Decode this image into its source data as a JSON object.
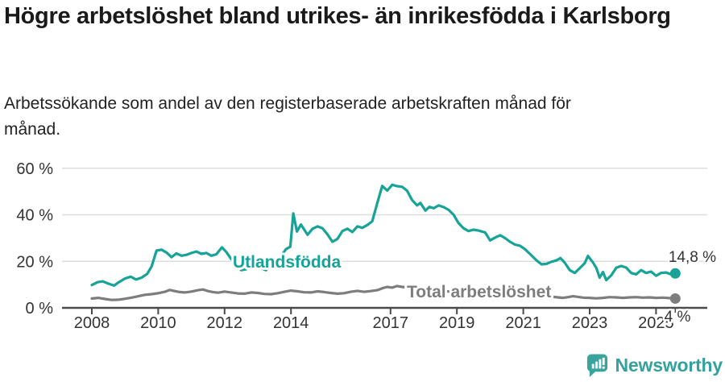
{
  "chart_data": {
    "type": "line",
    "title": "Högre arbetslöshet bland utrikes- än inrikesfödda i Karlsborg",
    "subtitle": "Arbetssökande som andel av den registerbaserade arbetskraften månad för månad.",
    "unit": "%",
    "legend_position": "inline-labels-on-lines",
    "x_axis": {
      "ticks": [
        "2008",
        "2010",
        "2012",
        "2014",
        "2017",
        "2019",
        "2021",
        "2023",
        "2025"
      ],
      "tick_years": [
        2008,
        2010,
        2012,
        2014,
        2017,
        2019,
        2021,
        2023,
        2025
      ],
      "range": [
        2007.1,
        2025.75
      ]
    },
    "y_axis": {
      "tick_labels": [
        "0 %",
        "20 %",
        "40 %",
        "60 %"
      ],
      "tick_values": [
        0,
        20,
        40,
        60
      ],
      "range": [
        0,
        62
      ],
      "gridlines": true
    },
    "colors": {
      "axis": "#4a4a4a",
      "grid": "#dddddd",
      "tick_text": "#333333",
      "end_label_text": "#333333",
      "halo": "#ffffff"
    },
    "series": [
      {
        "name": "Utlandsfödda",
        "color": "#17a398",
        "end_label": "14,8 %",
        "end_value": 14.8,
        "points": [
          [
            2008.0,
            9.8
          ],
          [
            2008.17,
            11.0
          ],
          [
            2008.33,
            11.4
          ],
          [
            2008.5,
            10.4
          ],
          [
            2008.67,
            9.6
          ],
          [
            2008.83,
            11.2
          ],
          [
            2009.0,
            12.6
          ],
          [
            2009.17,
            13.4
          ],
          [
            2009.33,
            12.2
          ],
          [
            2009.5,
            13.0
          ],
          [
            2009.67,
            14.6
          ],
          [
            2009.8,
            17.8
          ],
          [
            2009.95,
            24.6
          ],
          [
            2010.1,
            25.0
          ],
          [
            2010.25,
            23.8
          ],
          [
            2010.4,
            21.8
          ],
          [
            2010.55,
            23.4
          ],
          [
            2010.7,
            22.4
          ],
          [
            2010.85,
            22.8
          ],
          [
            2011.0,
            23.6
          ],
          [
            2011.15,
            24.2
          ],
          [
            2011.3,
            23.2
          ],
          [
            2011.45,
            23.6
          ],
          [
            2011.6,
            22.4
          ],
          [
            2011.75,
            23.0
          ],
          [
            2011.92,
            26.0
          ],
          [
            2012.05,
            24.0
          ],
          [
            2012.2,
            21.0
          ],
          [
            2012.35,
            19.3
          ],
          [
            2012.5,
            16.2
          ],
          [
            2012.65,
            16.6
          ],
          [
            2012.8,
            18.8
          ],
          [
            2012.95,
            18.4
          ],
          [
            2013.1,
            17.0
          ],
          [
            2013.25,
            16.2
          ],
          [
            2013.4,
            18.6
          ],
          [
            2013.55,
            20.0
          ],
          [
            2013.7,
            22.2
          ],
          [
            2013.85,
            25.2
          ],
          [
            2013.98,
            26.3
          ],
          [
            2014.07,
            40.6
          ],
          [
            2014.18,
            32.8
          ],
          [
            2014.3,
            35.8
          ],
          [
            2014.4,
            33.6
          ],
          [
            2014.5,
            31.4
          ],
          [
            2014.65,
            34.0
          ],
          [
            2014.8,
            35.0
          ],
          [
            2014.95,
            34.2
          ],
          [
            2015.1,
            31.6
          ],
          [
            2015.25,
            28.4
          ],
          [
            2015.4,
            29.6
          ],
          [
            2015.55,
            33.0
          ],
          [
            2015.7,
            34.0
          ],
          [
            2015.85,
            32.6
          ],
          [
            2016.0,
            35.0
          ],
          [
            2016.15,
            34.4
          ],
          [
            2016.3,
            35.6
          ],
          [
            2016.45,
            37.2
          ],
          [
            2016.6,
            45.0
          ],
          [
            2016.75,
            52.4
          ],
          [
            2016.9,
            50.4
          ],
          [
            2017.05,
            52.9
          ],
          [
            2017.2,
            52.3
          ],
          [
            2017.35,
            52.0
          ],
          [
            2017.5,
            50.3
          ],
          [
            2017.65,
            46.3
          ],
          [
            2017.8,
            44.0
          ],
          [
            2017.9,
            45.1
          ],
          [
            2018.05,
            41.8
          ],
          [
            2018.17,
            43.4
          ],
          [
            2018.3,
            42.8
          ],
          [
            2018.45,
            44.0
          ],
          [
            2018.6,
            43.3
          ],
          [
            2018.75,
            42.1
          ],
          [
            2018.9,
            40.0
          ],
          [
            2019.05,
            36.4
          ],
          [
            2019.2,
            34.2
          ],
          [
            2019.35,
            33.0
          ],
          [
            2019.5,
            33.6
          ],
          [
            2019.65,
            33.2
          ],
          [
            2019.85,
            32.4
          ],
          [
            2020.0,
            29.0
          ],
          [
            2020.15,
            30.2
          ],
          [
            2020.3,
            31.2
          ],
          [
            2020.45,
            30.0
          ],
          [
            2020.6,
            28.4
          ],
          [
            2020.75,
            27.2
          ],
          [
            2020.9,
            26.7
          ],
          [
            2021.05,
            25.2
          ],
          [
            2021.2,
            23.2
          ],
          [
            2021.4,
            20.4
          ],
          [
            2021.55,
            18.7
          ],
          [
            2021.7,
            18.9
          ],
          [
            2021.85,
            19.8
          ],
          [
            2022.0,
            20.4
          ],
          [
            2022.12,
            21.4
          ],
          [
            2022.25,
            19.4
          ],
          [
            2022.4,
            16.2
          ],
          [
            2022.55,
            15.0
          ],
          [
            2022.7,
            17.0
          ],
          [
            2022.85,
            19.2
          ],
          [
            2022.95,
            22.3
          ],
          [
            2023.1,
            19.5
          ],
          [
            2023.2,
            17.2
          ],
          [
            2023.3,
            13.0
          ],
          [
            2023.4,
            15.4
          ],
          [
            2023.5,
            11.9
          ],
          [
            2023.65,
            14.0
          ],
          [
            2023.8,
            17.2
          ],
          [
            2023.95,
            18.0
          ],
          [
            2024.1,
            17.3
          ],
          [
            2024.25,
            15.0
          ],
          [
            2024.4,
            14.4
          ],
          [
            2024.55,
            16.2
          ],
          [
            2024.7,
            15.0
          ],
          [
            2024.85,
            15.6
          ],
          [
            2025.0,
            13.8
          ],
          [
            2025.15,
            15.0
          ],
          [
            2025.3,
            15.2
          ],
          [
            2025.45,
            14.4
          ],
          [
            2025.58,
            14.8
          ]
        ]
      },
      {
        "name": "Total arbetslöshet",
        "color": "#7d7d7d",
        "end_label": "4 %",
        "end_value": 4,
        "points": [
          [
            2008.0,
            4.0
          ],
          [
            2008.2,
            4.3
          ],
          [
            2008.4,
            3.8
          ],
          [
            2008.6,
            3.4
          ],
          [
            2008.8,
            3.5
          ],
          [
            2009.0,
            3.9
          ],
          [
            2009.2,
            4.4
          ],
          [
            2009.4,
            5.0
          ],
          [
            2009.6,
            5.6
          ],
          [
            2009.8,
            5.9
          ],
          [
            2010.0,
            6.3
          ],
          [
            2010.2,
            6.9
          ],
          [
            2010.35,
            7.7
          ],
          [
            2010.5,
            7.2
          ],
          [
            2010.65,
            6.8
          ],
          [
            2010.8,
            6.6
          ],
          [
            2011.0,
            7.0
          ],
          [
            2011.2,
            7.6
          ],
          [
            2011.35,
            7.9
          ],
          [
            2011.5,
            7.2
          ],
          [
            2011.65,
            6.8
          ],
          [
            2011.8,
            6.5
          ],
          [
            2012.0,
            7.0
          ],
          [
            2012.2,
            6.6
          ],
          [
            2012.4,
            6.2
          ],
          [
            2012.6,
            6.1
          ],
          [
            2012.8,
            6.6
          ],
          [
            2013.0,
            6.4
          ],
          [
            2013.2,
            6.0
          ],
          [
            2013.4,
            5.9
          ],
          [
            2013.6,
            6.3
          ],
          [
            2013.8,
            6.9
          ],
          [
            2014.0,
            7.4
          ],
          [
            2014.2,
            7.1
          ],
          [
            2014.4,
            6.7
          ],
          [
            2014.6,
            6.6
          ],
          [
            2014.8,
            7.1
          ],
          [
            2015.0,
            6.8
          ],
          [
            2015.2,
            6.4
          ],
          [
            2015.4,
            6.1
          ],
          [
            2015.6,
            6.3
          ],
          [
            2015.8,
            6.9
          ],
          [
            2016.0,
            7.3
          ],
          [
            2016.2,
            6.9
          ],
          [
            2016.4,
            7.2
          ],
          [
            2016.6,
            7.6
          ],
          [
            2016.75,
            8.4
          ],
          [
            2016.9,
            9.0
          ],
          [
            2017.05,
            8.7
          ],
          [
            2017.2,
            9.4
          ],
          [
            2017.35,
            9.0
          ],
          [
            2017.5,
            8.8
          ],
          [
            2017.7,
            8.4
          ],
          [
            2017.9,
            8.6
          ],
          [
            2018.1,
            8.2
          ],
          [
            2018.3,
            7.8
          ],
          [
            2018.5,
            7.4
          ],
          [
            2018.7,
            7.1
          ],
          [
            2018.9,
            6.9
          ],
          [
            2019.1,
            6.7
          ],
          [
            2019.3,
            6.5
          ],
          [
            2019.5,
            6.3
          ],
          [
            2019.7,
            6.2
          ],
          [
            2019.9,
            6.3
          ],
          [
            2020.1,
            6.6
          ],
          [
            2020.3,
            7.1
          ],
          [
            2020.5,
            7.3
          ],
          [
            2020.7,
            6.9
          ],
          [
            2020.9,
            6.5
          ],
          [
            2021.1,
            6.1
          ],
          [
            2021.3,
            5.7
          ],
          [
            2021.5,
            5.3
          ],
          [
            2021.7,
            5.0
          ],
          [
            2021.9,
            4.7
          ],
          [
            2022.05,
            4.5
          ],
          [
            2022.2,
            4.3
          ],
          [
            2022.35,
            4.6
          ],
          [
            2022.5,
            5.0
          ],
          [
            2022.65,
            4.7
          ],
          [
            2022.8,
            4.4
          ],
          [
            2023.0,
            4.3
          ],
          [
            2023.2,
            4.1
          ],
          [
            2023.4,
            4.3
          ],
          [
            2023.6,
            4.6
          ],
          [
            2023.8,
            4.5
          ],
          [
            2024.0,
            4.3
          ],
          [
            2024.2,
            4.5
          ],
          [
            2024.4,
            4.6
          ],
          [
            2024.6,
            4.4
          ],
          [
            2024.8,
            4.5
          ],
          [
            2025.0,
            4.3
          ],
          [
            2025.2,
            4.4
          ],
          [
            2025.4,
            4.2
          ],
          [
            2025.58,
            4.0
          ]
        ]
      }
    ]
  },
  "footer": {
    "brand": "Newsworthy",
    "logo_color": "#3ba39e"
  }
}
